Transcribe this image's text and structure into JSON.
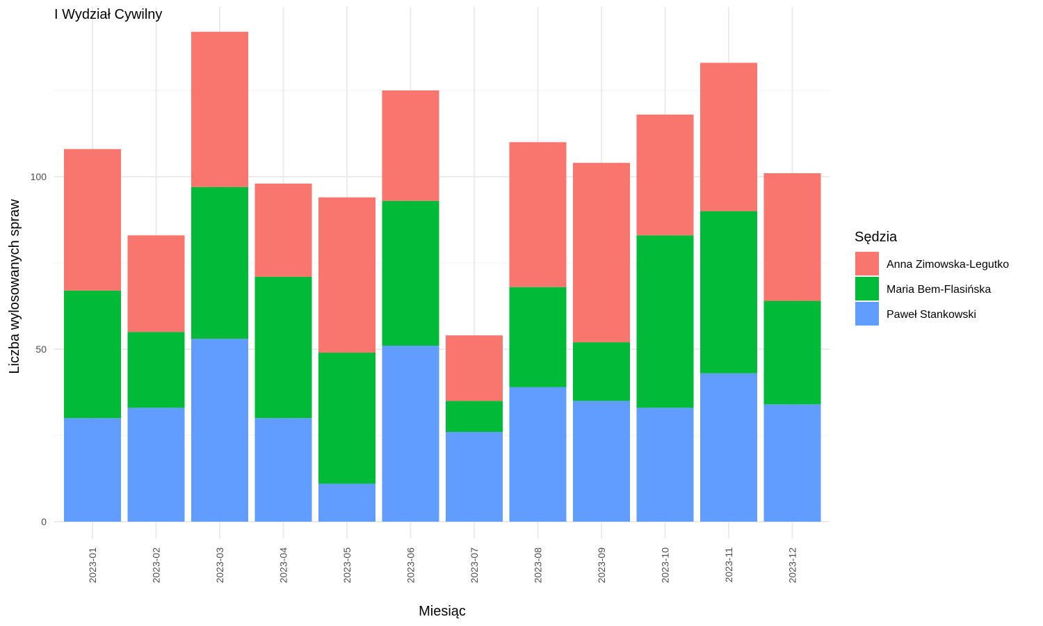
{
  "chart_data": {
    "type": "bar",
    "stacked": true,
    "title": "I Wydział Cywilny",
    "xlabel": "Miesiąc",
    "ylabel": "Liczba wylosowanych spraw",
    "ylim": [
      0,
      147
    ],
    "yticks": [
      0,
      50,
      100
    ],
    "grid": true,
    "legend_position": "right",
    "legend_title": "Sędzia",
    "categories": [
      "2023-01",
      "2023-02",
      "2023-03",
      "2023-04",
      "2023-05",
      "2023-06",
      "2023-07",
      "2023-08",
      "2023-09",
      "2023-10",
      "2023-11",
      "2023-12"
    ],
    "series": [
      {
        "name": "Paweł Stankowski",
        "color": "#619CFF",
        "values": [
          30,
          33,
          53,
          30,
          11,
          51,
          26,
          39,
          35,
          33,
          43,
          34
        ]
      },
      {
        "name": "Maria Bem-Flasińska",
        "color": "#00BA38",
        "values": [
          37,
          22,
          44,
          41,
          38,
          42,
          9,
          29,
          17,
          50,
          47,
          30
        ]
      },
      {
        "name": "Anna Zimowska-Legutko",
        "color": "#F8766D",
        "values": [
          41,
          28,
          45,
          27,
          45,
          32,
          19,
          42,
          52,
          35,
          43,
          37
        ]
      }
    ],
    "legend_order": [
      "Anna Zimowska-Legutko",
      "Maria Bem-Flasińska",
      "Paweł Stankowski"
    ]
  }
}
